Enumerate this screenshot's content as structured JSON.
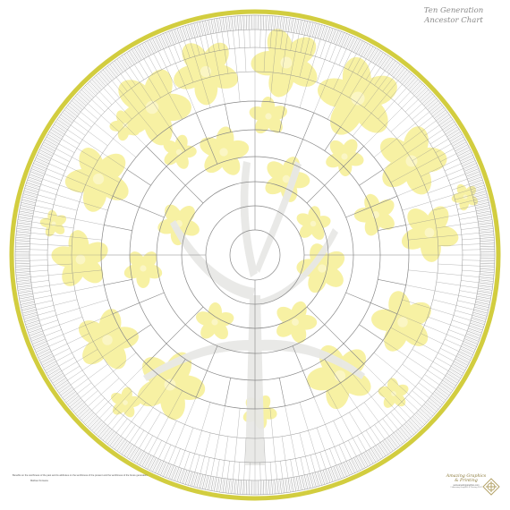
{
  "title": {
    "line1": "Ten Generation",
    "line2": "Ancestor Chart"
  },
  "chart": {
    "generations": 10,
    "ring_color": "#cfcb3a",
    "blossom_color": "#f7f1a3",
    "trunk_color": "#e6e6e6",
    "line_color": "#888888"
  },
  "footer": {
    "quote": "Benefits on the worthiness of the past and its attributes on the worthiness",
    "quote_line2": "of the present and the worthiness of the future generation.",
    "quote_author": "Mathew Fonseca",
    "brand_line1": "Amazing Graphics",
    "brand_line2": "& Printing",
    "brand_url": "www.amazinggraphics.com",
    "brand_copyright": "© Amazing Graphics & Printing 2017"
  }
}
